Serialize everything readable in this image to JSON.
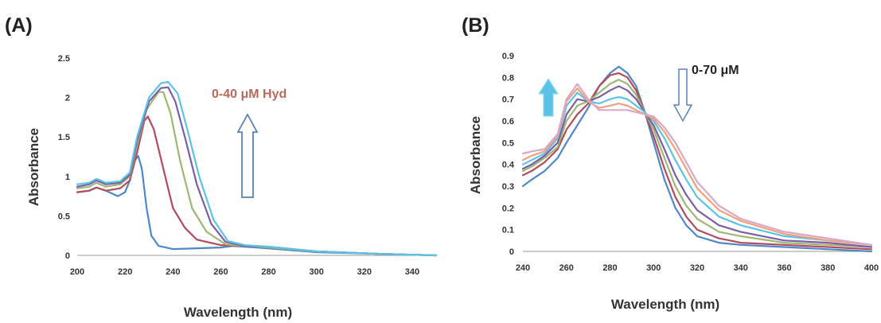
{
  "chart_data": [
    {
      "type": "line",
      "panel_label": "(A)",
      "xlabel": "Wavelength (nm)",
      "ylabel": "Absorbance",
      "xlim": [
        200,
        350
      ],
      "ylim": [
        0,
        2.5
      ],
      "xticks": [
        "200",
        "220",
        "240",
        "260",
        "280",
        "300",
        "320",
        "340"
      ],
      "yticks": [
        "0",
        "0.5",
        "1",
        "1.5",
        "2",
        "2.5"
      ],
      "annotation": "0-40 μM Hyd",
      "annotation_color": "#b86a5a",
      "arrow_direction": "up",
      "grid": false,
      "series": [
        {
          "color": "#4f88c9",
          "points": [
            [
              200,
              0.8
            ],
            [
              205,
              0.82
            ],
            [
              208,
              0.86
            ],
            [
              212,
              0.82
            ],
            [
              217,
              0.75
            ],
            [
              220,
              0.8
            ],
            [
              222,
              0.95
            ],
            [
              224,
              1.2
            ],
            [
              225.5,
              1.26
            ],
            [
              227,
              1.1
            ],
            [
              229,
              0.6
            ],
            [
              231,
              0.25
            ],
            [
              234,
              0.12
            ],
            [
              240,
              0.08
            ],
            [
              250,
              0.09
            ],
            [
              260,
              0.1
            ],
            [
              265,
              0.12
            ],
            [
              275,
              0.1
            ],
            [
              300,
              0.04
            ],
            [
              325,
              0.02
            ],
            [
              350,
              0.0
            ]
          ]
        },
        {
          "color": "#b24b5e",
          "points": [
            [
              200,
              0.8
            ],
            [
              205,
              0.82
            ],
            [
              208,
              0.86
            ],
            [
              212,
              0.82
            ],
            [
              218,
              0.85
            ],
            [
              222,
              0.95
            ],
            [
              225,
              1.3
            ],
            [
              228,
              1.7
            ],
            [
              229.5,
              1.76
            ],
            [
              232,
              1.6
            ],
            [
              236,
              1.1
            ],
            [
              240,
              0.6
            ],
            [
              245,
              0.35
            ],
            [
              250,
              0.2
            ],
            [
              260,
              0.13
            ],
            [
              270,
              0.12
            ],
            [
              280,
              0.1
            ],
            [
              300,
              0.05
            ],
            [
              325,
              0.02
            ],
            [
              350,
              0.0
            ]
          ]
        },
        {
          "color": "#9db872",
          "points": [
            [
              200,
              0.85
            ],
            [
              205,
              0.87
            ],
            [
              208,
              0.92
            ],
            [
              212,
              0.87
            ],
            [
              218,
              0.9
            ],
            [
              222,
              1.0
            ],
            [
              225,
              1.4
            ],
            [
              229,
              1.85
            ],
            [
              234,
              2.07
            ],
            [
              236,
              2.07
            ],
            [
              239,
              1.8
            ],
            [
              243,
              1.2
            ],
            [
              248,
              0.6
            ],
            [
              254,
              0.3
            ],
            [
              262,
              0.14
            ],
            [
              270,
              0.12
            ],
            [
              280,
              0.1
            ],
            [
              300,
              0.05
            ],
            [
              325,
              0.02
            ],
            [
              350,
              0.0
            ]
          ]
        },
        {
          "color": "#7e5da8",
          "points": [
            [
              200,
              0.87
            ],
            [
              205,
              0.9
            ],
            [
              208,
              0.95
            ],
            [
              212,
              0.9
            ],
            [
              218,
              0.92
            ],
            [
              222,
              1.02
            ],
            [
              225,
              1.45
            ],
            [
              230,
              1.95
            ],
            [
              235,
              2.12
            ],
            [
              238,
              2.13
            ],
            [
              241,
              1.95
            ],
            [
              245,
              1.5
            ],
            [
              250,
              0.9
            ],
            [
              256,
              0.4
            ],
            [
              262,
              0.17
            ],
            [
              270,
              0.12
            ],
            [
              280,
              0.11
            ],
            [
              300,
              0.05
            ],
            [
              325,
              0.02
            ],
            [
              350,
              0.0
            ]
          ]
        },
        {
          "color": "#5bc3e5",
          "points": [
            [
              200,
              0.9
            ],
            [
              205,
              0.92
            ],
            [
              208,
              0.97
            ],
            [
              212,
              0.92
            ],
            [
              218,
              0.94
            ],
            [
              222,
              1.05
            ],
            [
              225,
              1.5
            ],
            [
              230,
              2.0
            ],
            [
              235,
              2.18
            ],
            [
              238,
              2.2
            ],
            [
              242,
              2.05
            ],
            [
              246,
              1.6
            ],
            [
              251,
              1.0
            ],
            [
              257,
              0.45
            ],
            [
              263,
              0.18
            ],
            [
              270,
              0.13
            ],
            [
              280,
              0.11
            ],
            [
              300,
              0.05
            ],
            [
              325,
              0.02
            ],
            [
              350,
              0.0
            ]
          ]
        }
      ]
    },
    {
      "type": "line",
      "panel_label": "(B)",
      "xlabel": "Wavelength (nm)",
      "ylabel": "Absorbance",
      "xlim": [
        240,
        400
      ],
      "ylim": [
        0,
        0.9
      ],
      "xticks": [
        "240",
        "260",
        "280",
        "300",
        "320",
        "340",
        "360",
        "380",
        "400"
      ],
      "yticks": [
        "0",
        "0.1",
        "0.2",
        "0.3",
        "0.4",
        "0.5",
        "0.6",
        "0.7",
        "0.8",
        "0.9"
      ],
      "annotation": "0-70 μM",
      "annotation_color": "#222222",
      "grid": false,
      "series": [
        {
          "color": "#4f88c9",
          "points": [
            [
              240,
              0.3
            ],
            [
              244,
              0.33
            ],
            [
              250,
              0.37
            ],
            [
              256,
              0.43
            ],
            [
              260,
              0.5
            ],
            [
              265,
              0.58
            ],
            [
              270,
              0.66
            ],
            [
              275,
              0.76
            ],
            [
              280,
              0.82
            ],
            [
              284,
              0.85
            ],
            [
              288,
              0.82
            ],
            [
              292,
              0.76
            ],
            [
              296,
              0.64
            ],
            [
              300,
              0.5
            ],
            [
              305,
              0.33
            ],
            [
              310,
              0.2
            ],
            [
              315,
              0.12
            ],
            [
              320,
              0.07
            ],
            [
              330,
              0.04
            ],
            [
              340,
              0.03
            ],
            [
              360,
              0.02
            ],
            [
              380,
              0.01
            ],
            [
              400,
              0.0
            ]
          ]
        },
        {
          "color": "#b24b5e",
          "points": [
            [
              240,
              0.35
            ],
            [
              244,
              0.37
            ],
            [
              250,
              0.41
            ],
            [
              256,
              0.47
            ],
            [
              260,
              0.56
            ],
            [
              265,
              0.63
            ],
            [
              270,
              0.68
            ],
            [
              275,
              0.76
            ],
            [
              280,
              0.81
            ],
            [
              284,
              0.82
            ],
            [
              288,
              0.8
            ],
            [
              292,
              0.74
            ],
            [
              296,
              0.64
            ],
            [
              300,
              0.53
            ],
            [
              305,
              0.38
            ],
            [
              310,
              0.25
            ],
            [
              315,
              0.16
            ],
            [
              320,
              0.1
            ],
            [
              330,
              0.06
            ],
            [
              340,
              0.04
            ],
            [
              360,
              0.03
            ],
            [
              380,
              0.02
            ],
            [
              400,
              0.01
            ]
          ]
        },
        {
          "color": "#9db872",
          "points": [
            [
              240,
              0.37
            ],
            [
              244,
              0.39
            ],
            [
              250,
              0.43
            ],
            [
              256,
              0.48
            ],
            [
              260,
              0.6
            ],
            [
              265,
              0.67
            ],
            [
              270,
              0.69
            ],
            [
              275,
              0.73
            ],
            [
              280,
              0.77
            ],
            [
              284,
              0.79
            ],
            [
              288,
              0.77
            ],
            [
              292,
              0.72
            ],
            [
              296,
              0.64
            ],
            [
              300,
              0.56
            ],
            [
              305,
              0.43
            ],
            [
              310,
              0.3
            ],
            [
              315,
              0.21
            ],
            [
              320,
              0.15
            ],
            [
              330,
              0.09
            ],
            [
              340,
              0.07
            ],
            [
              360,
              0.04
            ],
            [
              380,
              0.03
            ],
            [
              400,
              0.02
            ]
          ]
        },
        {
          "color": "#7e5da8",
          "points": [
            [
              240,
              0.38
            ],
            [
              244,
              0.4
            ],
            [
              250,
              0.44
            ],
            [
              256,
              0.5
            ],
            [
              260,
              0.63
            ],
            [
              265,
              0.7
            ],
            [
              270,
              0.69
            ],
            [
              275,
              0.71
            ],
            [
              280,
              0.74
            ],
            [
              284,
              0.76
            ],
            [
              288,
              0.74
            ],
            [
              292,
              0.7
            ],
            [
              296,
              0.64
            ],
            [
              300,
              0.58
            ],
            [
              305,
              0.47
            ],
            [
              310,
              0.35
            ],
            [
              315,
              0.26
            ],
            [
              320,
              0.19
            ],
            [
              330,
              0.12
            ],
            [
              340,
              0.09
            ],
            [
              360,
              0.05
            ],
            [
              380,
              0.04
            ],
            [
              400,
              0.02
            ]
          ]
        },
        {
          "color": "#5bc3e5",
          "points": [
            [
              240,
              0.4
            ],
            [
              244,
              0.42
            ],
            [
              250,
              0.45
            ],
            [
              256,
              0.52
            ],
            [
              260,
              0.67
            ],
            [
              265,
              0.73
            ],
            [
              270,
              0.69
            ],
            [
              275,
              0.68
            ],
            [
              280,
              0.7
            ],
            [
              284,
              0.71
            ],
            [
              288,
              0.7
            ],
            [
              292,
              0.67
            ],
            [
              296,
              0.64
            ],
            [
              300,
              0.6
            ],
            [
              305,
              0.52
            ],
            [
              310,
              0.42
            ],
            [
              315,
              0.33
            ],
            [
              320,
              0.25
            ],
            [
              330,
              0.16
            ],
            [
              340,
              0.12
            ],
            [
              360,
              0.07
            ],
            [
              380,
              0.05
            ],
            [
              400,
              0.03
            ]
          ]
        },
        {
          "color": "#f2a07c",
          "points": [
            [
              240,
              0.42
            ],
            [
              244,
              0.44
            ],
            [
              250,
              0.46
            ],
            [
              256,
              0.53
            ],
            [
              260,
              0.69
            ],
            [
              265,
              0.75
            ],
            [
              270,
              0.69
            ],
            [
              275,
              0.66
            ],
            [
              280,
              0.67
            ],
            [
              284,
              0.68
            ],
            [
              288,
              0.67
            ],
            [
              292,
              0.65
            ],
            [
              296,
              0.63
            ],
            [
              300,
              0.61
            ],
            [
              305,
              0.55
            ],
            [
              310,
              0.47
            ],
            [
              315,
              0.38
            ],
            [
              320,
              0.29
            ],
            [
              330,
              0.19
            ],
            [
              340,
              0.14
            ],
            [
              360,
              0.08
            ],
            [
              380,
              0.05
            ],
            [
              400,
              0.03
            ]
          ]
        },
        {
          "color": "#d8a8c8",
          "points": [
            [
              240,
              0.45
            ],
            [
              244,
              0.46
            ],
            [
              250,
              0.47
            ],
            [
              256,
              0.54
            ],
            [
              260,
              0.7
            ],
            [
              265,
              0.77
            ],
            [
              270,
              0.7
            ],
            [
              275,
              0.65
            ],
            [
              280,
              0.65
            ],
            [
              284,
              0.65
            ],
            [
              288,
              0.65
            ],
            [
              292,
              0.64
            ],
            [
              296,
              0.63
            ],
            [
              300,
              0.62
            ],
            [
              305,
              0.57
            ],
            [
              310,
              0.5
            ],
            [
              315,
              0.41
            ],
            [
              320,
              0.32
            ],
            [
              330,
              0.21
            ],
            [
              340,
              0.15
            ],
            [
              360,
              0.09
            ],
            [
              380,
              0.06
            ],
            [
              400,
              0.03
            ]
          ]
        }
      ]
    }
  ]
}
